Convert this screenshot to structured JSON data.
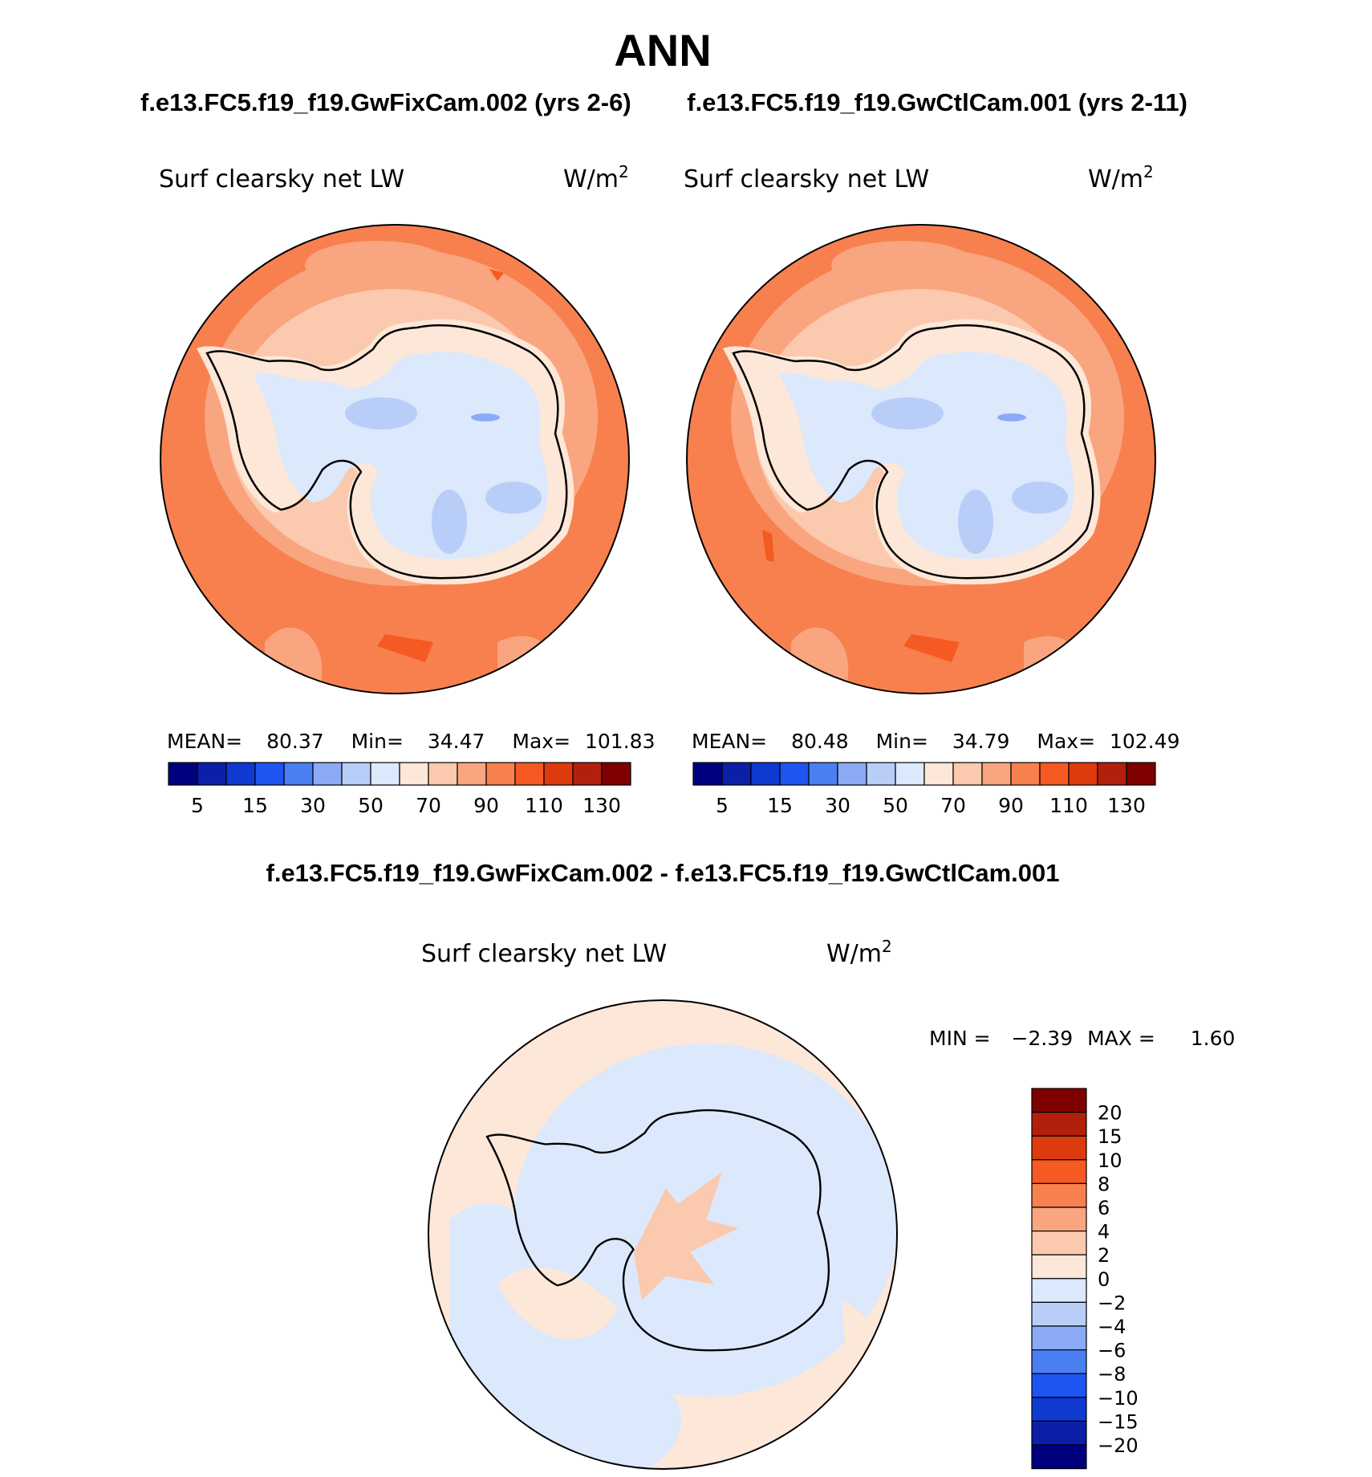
{
  "figure": {
    "title": "ANN",
    "top_subtitle_left": "f.e13.FC5.f19_f19.GwFixCam.002 (yrs 2-6)",
    "top_subtitle_right": "f.e13.FC5.f19_f19.GwCtlCam.001 (yrs 2-11)",
    "diff_title": "f.e13.FC5.f19_f19.GwFixCam.002 - f.e13.FC5.f19_f19.GwCtlCam.001"
  },
  "panels": [
    {
      "variable": "Surf  clearsky  net  LW",
      "units": "W/m",
      "units_sup": "2",
      "stats": {
        "mean_label": "MEAN=",
        "mean": "80.37",
        "min_label": "Min=",
        "min": "34.47",
        "max_label": "Max=",
        "max": "101.83"
      }
    },
    {
      "variable": "Surf  clearsky  net  LW",
      "units": "W/m",
      "units_sup": "2",
      "stats": {
        "mean_label": "MEAN=",
        "mean": "80.48",
        "min_label": "Min=",
        "min": "34.79",
        "max_label": "Max=",
        "max": "102.49"
      }
    }
  ],
  "diff_panel": {
    "variable": "Surf  clearsky  net  LW",
    "units": "W/m",
    "units_sup": "2",
    "min_label": "MIN =",
    "min": "−2.39",
    "max_label": "MAX =",
    "max": "1.60"
  },
  "colorbar_main": {
    "colors": [
      "#00007f",
      "#0b1fa8",
      "#0f3ad1",
      "#1e55f0",
      "#4a7ff2",
      "#8aaaf5",
      "#b8cdf8",
      "#dce8fb",
      "#fde7d8",
      "#fbc9ad",
      "#f9a57f",
      "#f7804e",
      "#f45a21",
      "#dd3a0e",
      "#b2200c",
      "#7f0000"
    ],
    "tick_labels": [
      "5",
      "15",
      "30",
      "50",
      "70",
      "90",
      "110",
      "130"
    ]
  },
  "colorbar_diff": {
    "colors": [
      "#00007f",
      "#0b1fa8",
      "#0f3ad1",
      "#1e55f0",
      "#4a7ff2",
      "#8aaaf5",
      "#b8cdf8",
      "#dce8fb",
      "#fde7d8",
      "#fbc9ad",
      "#f9a57f",
      "#f7804e",
      "#f45a21",
      "#dd3a0e",
      "#b2200c",
      "#7f0000"
    ],
    "tick_labels": [
      "20",
      "15",
      "10",
      "8",
      "6",
      "4",
      "2",
      "0",
      "−2",
      "−4",
      "−6",
      "−8",
      "−10",
      "−15",
      "−20"
    ]
  },
  "map_colors": {
    "outer": "#f7804e",
    "band2": "#f9a57f",
    "band3": "#fbc9ad",
    "coast": "#fde7d8",
    "interior": "#dce8fb",
    "low": "#b8cdf8",
    "lower": "#8aaaf5",
    "diff_pos": "#fde7d8",
    "diff_neg": "#dce8fb",
    "diff_pos2": "#fbc9ad"
  }
}
